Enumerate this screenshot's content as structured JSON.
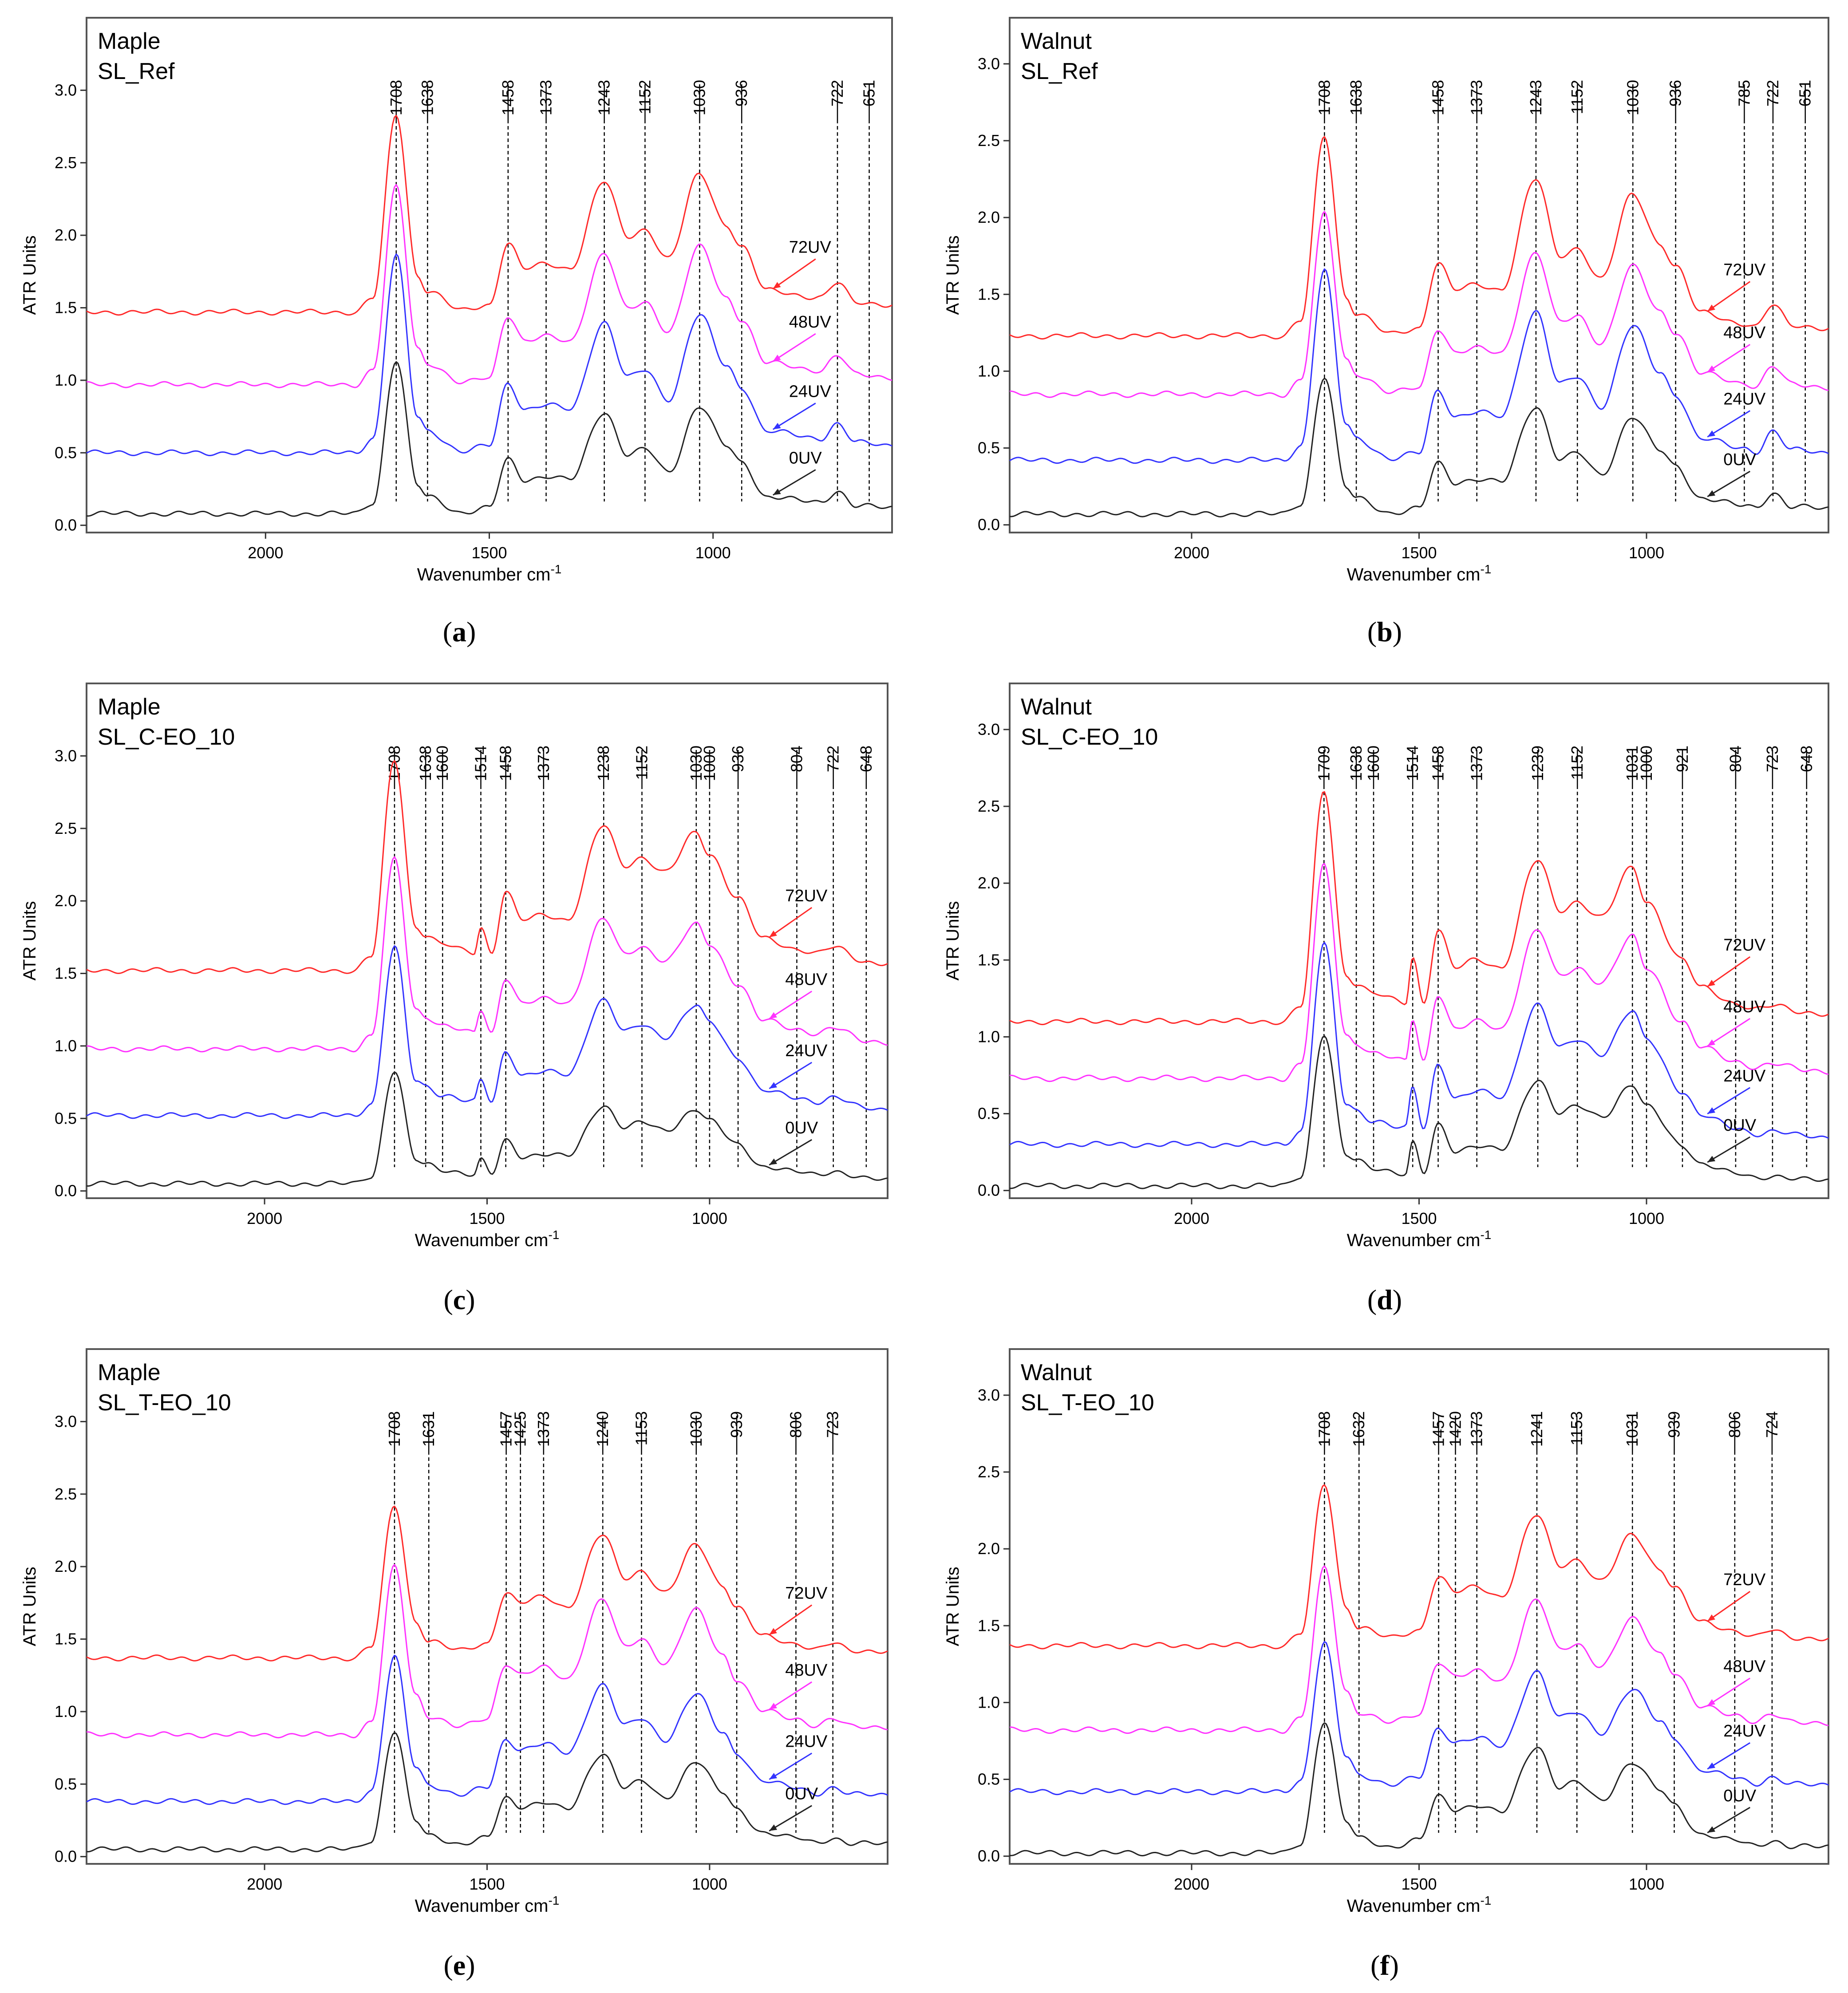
{
  "figure": {
    "captions": [
      "a",
      "b",
      "c",
      "d",
      "e",
      "f"
    ]
  },
  "chart_data": [
    {
      "type": "line",
      "panel": "a",
      "title": [
        "Maple",
        "SL_Ref"
      ],
      "xlabel": "Wavenumber cm",
      "xlabel_sup": "-1",
      "ylabel": "ATR Units",
      "xlim": [
        2400,
        600
      ],
      "ylim": [
        -0.05,
        3.5
      ],
      "xticks": [
        2000,
        1500,
        1000
      ],
      "xtick_labels": [
        "2000",
        "1500",
        "1000"
      ],
      "yticks": [
        0.0,
        0.5,
        1.0,
        1.5,
        2.0,
        2.5,
        3.0
      ],
      "ytick_labels": [
        "0.0",
        "0.5",
        "1.0",
        "1.5",
        "2.0",
        "2.5",
        "3.0"
      ],
      "peaks": [
        1708,
        1638,
        1458,
        1373,
        1243,
        1152,
        1030,
        936,
        722,
        651
      ],
      "peak_labels": [
        "1708",
        "1638",
        "1458",
        "1373",
        "1243",
        "1152",
        "1030",
        "936",
        "722",
        "651"
      ],
      "series": [
        {
          "name": "72UV",
          "color": "#ff2a2a",
          "offset": 1.47,
          "scale": 1.0
        },
        {
          "name": "48UV",
          "color": "#ff33ff",
          "offset": 0.97,
          "scale": 1.0
        },
        {
          "name": "24UV",
          "color": "#3333ff",
          "offset": 0.5,
          "scale": 1.0
        },
        {
          "name": "0UV",
          "color": "#222222",
          "offset": 0.08,
          "scale": 0.78
        }
      ],
      "profile": [
        [
          2400,
          0
        ],
        [
          1800,
          0
        ],
        [
          1760,
          0.1
        ],
        [
          1708,
          1.36
        ],
        [
          1660,
          0.25
        ],
        [
          1638,
          0.15
        ],
        [
          1560,
          0.01
        ],
        [
          1500,
          0.05
        ],
        [
          1458,
          0.48
        ],
        [
          1420,
          0.3
        ],
        [
          1373,
          0.33
        ],
        [
          1320,
          0.3
        ],
        [
          1243,
          0.9
        ],
        [
          1190,
          0.52
        ],
        [
          1152,
          0.57
        ],
        [
          1100,
          0.37
        ],
        [
          1030,
          0.95
        ],
        [
          970,
          0.6
        ],
        [
          936,
          0.45
        ],
        [
          880,
          0.15
        ],
        [
          760,
          0.1
        ],
        [
          722,
          0.2
        ],
        [
          680,
          0.07
        ],
        [
          600,
          0.05
        ]
      ]
    },
    {
      "type": "line",
      "panel": "b",
      "title": [
        "Walnut",
        "SL_Ref"
      ],
      "xlabel": "Wavenumber cm",
      "xlabel_sup": "-1",
      "ylabel": "ATR Units",
      "xlim": [
        2400,
        600
      ],
      "ylim": [
        -0.05,
        3.3
      ],
      "xticks": [
        2000,
        1500,
        1000
      ],
      "xtick_labels": [
        "2000",
        "1500",
        "1000"
      ],
      "yticks": [
        0.0,
        0.5,
        1.0,
        1.5,
        2.0,
        2.5,
        3.0
      ],
      "ytick_labels": [
        "0.0",
        "0.5",
        "1.0",
        "1.5",
        "2.0",
        "2.5",
        "3.0"
      ],
      "peaks": [
        1708,
        1638,
        1458,
        1373,
        1243,
        1152,
        1030,
        936,
        785,
        722,
        651
      ],
      "peak_labels": [
        "1708",
        "1638",
        "1458",
        "1373",
        "1243",
        "1152",
        "1030",
        "936",
        "785",
        "722",
        "651"
      ],
      "series": [
        {
          "name": "72UV",
          "color": "#ff2a2a",
          "offset": 1.23,
          "scale": 1.0
        },
        {
          "name": "48UV",
          "color": "#ff33ff",
          "offset": 0.85,
          "scale": 0.9
        },
        {
          "name": "24UV",
          "color": "#3333ff",
          "offset": 0.42,
          "scale": 0.95
        },
        {
          "name": "0UV",
          "color": "#222222",
          "offset": 0.07,
          "scale": 0.69
        }
      ],
      "profile": [
        [
          2400,
          0
        ],
        [
          1800,
          0
        ],
        [
          1760,
          0.1
        ],
        [
          1708,
          1.3
        ],
        [
          1660,
          0.25
        ],
        [
          1638,
          0.15
        ],
        [
          1560,
          0.01
        ],
        [
          1500,
          0.05
        ],
        [
          1458,
          0.48
        ],
        [
          1420,
          0.3
        ],
        [
          1373,
          0.33
        ],
        [
          1320,
          0.3
        ],
        [
          1243,
          1.02
        ],
        [
          1190,
          0.52
        ],
        [
          1152,
          0.57
        ],
        [
          1100,
          0.37
        ],
        [
          1030,
          0.92
        ],
        [
          970,
          0.6
        ],
        [
          936,
          0.45
        ],
        [
          880,
          0.15
        ],
        [
          785,
          0.08
        ],
        [
          760,
          0.06
        ],
        [
          722,
          0.2
        ],
        [
          680,
          0.07
        ],
        [
          600,
          0.05
        ]
      ]
    },
    {
      "type": "line",
      "panel": "c",
      "title": [
        "Maple",
        "SL_C-EO_10"
      ],
      "xlabel": "Wavenumber cm",
      "xlabel_sup": "-1",
      "ylabel": "ATR Units",
      "xlim": [
        2400,
        600
      ],
      "ylim": [
        -0.05,
        3.5
      ],
      "xticks": [
        2000,
        1500,
        1000
      ],
      "xtick_labels": [
        "2000",
        "1500",
        "1000"
      ],
      "yticks": [
        0.0,
        0.5,
        1.0,
        1.5,
        2.0,
        2.5,
        3.0
      ],
      "ytick_labels": [
        "0.0",
        "0.5",
        "1.0",
        "1.5",
        "2.0",
        "2.5",
        "3.0"
      ],
      "peaks": [
        1708,
        1638,
        1600,
        1514,
        1458,
        1373,
        1238,
        1152,
        1030,
        1000,
        936,
        804,
        722,
        648
      ],
      "peak_labels": [
        "1708",
        "1638",
        "1600",
        "1514",
        "1458",
        "1373",
        "1238",
        "1152",
        "1030",
        "1000",
        "936",
        "804",
        "722",
        "648"
      ],
      "series": [
        {
          "name": "72UV",
          "color": "#ff2a2a",
          "offset": 1.52,
          "scale": 1.0
        },
        {
          "name": "48UV",
          "color": "#ff33ff",
          "offset": 0.98,
          "scale": 0.9
        },
        {
          "name": "24UV",
          "color": "#3333ff",
          "offset": 0.52,
          "scale": 0.8
        },
        {
          "name": "0UV",
          "color": "#222222",
          "offset": 0.05,
          "scale": 0.54
        }
      ],
      "profile": [
        [
          2400,
          0
        ],
        [
          1800,
          0
        ],
        [
          1760,
          0.1
        ],
        [
          1708,
          1.45
        ],
        [
          1660,
          0.3
        ],
        [
          1638,
          0.25
        ],
        [
          1600,
          0.18
        ],
        [
          1530,
          0.12
        ],
        [
          1514,
          0.3
        ],
        [
          1490,
          0.12
        ],
        [
          1458,
          0.55
        ],
        [
          1420,
          0.35
        ],
        [
          1373,
          0.38
        ],
        [
          1320,
          0.35
        ],
        [
          1238,
          1.0
        ],
        [
          1190,
          0.72
        ],
        [
          1152,
          0.78
        ],
        [
          1100,
          0.68
        ],
        [
          1030,
          0.95
        ],
        [
          1000,
          0.8
        ],
        [
          936,
          0.5
        ],
        [
          880,
          0.22
        ],
        [
          804,
          0.15
        ],
        [
          760,
          0.12
        ],
        [
          722,
          0.16
        ],
        [
          648,
          0.06
        ],
        [
          600,
          0.05
        ]
      ]
    },
    {
      "type": "line",
      "panel": "d",
      "title": [
        "Walnut",
        "SL_C-EO_10"
      ],
      "xlabel": "Wavenumber cm",
      "xlabel_sup": "-1",
      "ylabel": "ATR Units",
      "xlim": [
        2400,
        600
      ],
      "ylim": [
        -0.05,
        3.3
      ],
      "xticks": [
        2000,
        1500,
        1000
      ],
      "xtick_labels": [
        "2000",
        "1500",
        "1000"
      ],
      "yticks": [
        0.0,
        0.5,
        1.0,
        1.5,
        2.0,
        2.5,
        3.0
      ],
      "ytick_labels": [
        "0.0",
        "0.5",
        "1.0",
        "1.5",
        "2.0",
        "2.5",
        "3.0"
      ],
      "peaks": [
        1709,
        1638,
        1600,
        1514,
        1458,
        1373,
        1239,
        1152,
        1031,
        1000,
        921,
        804,
        723,
        648
      ],
      "peak_labels": [
        "1709",
        "1638",
        "1600",
        "1514",
        "1458",
        "1373",
        "1239",
        "1152",
        "1031",
        "1000",
        "921",
        "804",
        "723",
        "648"
      ],
      "series": [
        {
          "name": "72UV",
          "color": "#ff2a2a",
          "offset": 1.1,
          "scale": 1.0
        },
        {
          "name": "48UV",
          "color": "#ff33ff",
          "offset": 0.73,
          "scale": 0.92
        },
        {
          "name": "24UV",
          "color": "#3333ff",
          "offset": 0.3,
          "scale": 0.87
        },
        {
          "name": "0UV",
          "color": "#222222",
          "offset": 0.03,
          "scale": 0.66
        }
      ],
      "profile": [
        [
          2400,
          0
        ],
        [
          1800,
          0
        ],
        [
          1760,
          0.1
        ],
        [
          1709,
          1.5
        ],
        [
          1660,
          0.3
        ],
        [
          1638,
          0.25
        ],
        [
          1600,
          0.18
        ],
        [
          1530,
          0.12
        ],
        [
          1514,
          0.42
        ],
        [
          1490,
          0.12
        ],
        [
          1458,
          0.6
        ],
        [
          1420,
          0.35
        ],
        [
          1373,
          0.4
        ],
        [
          1320,
          0.35
        ],
        [
          1239,
          1.05
        ],
        [
          1190,
          0.72
        ],
        [
          1152,
          0.78
        ],
        [
          1100,
          0.68
        ],
        [
          1031,
          1.0
        ],
        [
          1000,
          0.78
        ],
        [
          921,
          0.4
        ],
        [
          880,
          0.22
        ],
        [
          804,
          0.12
        ],
        [
          760,
          0.08
        ],
        [
          723,
          0.1
        ],
        [
          648,
          0.06
        ],
        [
          600,
          0.05
        ]
      ]
    },
    {
      "type": "line",
      "panel": "e",
      "title": [
        "Maple",
        "SL_T-EO_10"
      ],
      "xlabel": "Wavenumber cm",
      "xlabel_sup": "-1",
      "ylabel": "ATR Units",
      "xlim": [
        2400,
        600
      ],
      "ylim": [
        -0.05,
        3.5
      ],
      "xticks": [
        2000,
        1500,
        1000
      ],
      "xtick_labels": [
        "2000",
        "1500",
        "1000"
      ],
      "yticks": [
        0.0,
        0.5,
        1.0,
        1.5,
        2.0,
        2.5,
        3.0
      ],
      "ytick_labels": [
        "0.0",
        "0.5",
        "1.0",
        "1.5",
        "2.0",
        "2.5",
        "3.0"
      ],
      "peaks": [
        1708,
        1631,
        1457,
        1425,
        1373,
        1240,
        1153,
        1030,
        939,
        806,
        723
      ],
      "peak_labels": [
        "1708",
        "1631",
        "1457",
        "1425",
        "1373",
        "1240",
        "1153",
        "1030",
        "939",
        "806",
        "723"
      ],
      "series": [
        {
          "name": "72UV",
          "color": "#ff2a2a",
          "offset": 1.37,
          "scale": 1.0
        },
        {
          "name": "48UV",
          "color": "#ff33ff",
          "offset": 0.84,
          "scale": 1.1
        },
        {
          "name": "24UV",
          "color": "#3333ff",
          "offset": 0.38,
          "scale": 0.95
        },
        {
          "name": "0UV",
          "color": "#222222",
          "offset": 0.05,
          "scale": 0.78
        }
      ],
      "profile": [
        [
          2400,
          0
        ],
        [
          1800,
          0
        ],
        [
          1760,
          0.08
        ],
        [
          1708,
          1.05
        ],
        [
          1660,
          0.25
        ],
        [
          1631,
          0.12
        ],
        [
          1560,
          0.05
        ],
        [
          1500,
          0.1
        ],
        [
          1457,
          0.45
        ],
        [
          1425,
          0.38
        ],
        [
          1373,
          0.42
        ],
        [
          1320,
          0.35
        ],
        [
          1240,
          0.85
        ],
        [
          1190,
          0.55
        ],
        [
          1153,
          0.6
        ],
        [
          1100,
          0.45
        ],
        [
          1030,
          0.78
        ],
        [
          970,
          0.5
        ],
        [
          939,
          0.35
        ],
        [
          880,
          0.15
        ],
        [
          806,
          0.1
        ],
        [
          760,
          0.06
        ],
        [
          723,
          0.1
        ],
        [
          680,
          0.05
        ],
        [
          600,
          0.05
        ]
      ]
    },
    {
      "type": "line",
      "panel": "f",
      "title": [
        "Walnut",
        "SL_T-EO_10"
      ],
      "xlabel": "Wavenumber cm",
      "xlabel_sup": "-1",
      "ylabel": "ATR Units",
      "xlim": [
        2400,
        600
      ],
      "ylim": [
        -0.05,
        3.3
      ],
      "xticks": [
        2000,
        1500,
        1000
      ],
      "xtick_labels": [
        "2000",
        "1500",
        "1000"
      ],
      "yticks": [
        0.0,
        0.5,
        1.0,
        1.5,
        2.0,
        2.5,
        3.0
      ],
      "ytick_labels": [
        "0.0",
        "0.5",
        "1.0",
        "1.5",
        "2.0",
        "2.5",
        "3.0"
      ],
      "peaks": [
        1708,
        1632,
        1457,
        1420,
        1373,
        1241,
        1153,
        1031,
        939,
        806,
        724
      ],
      "peak_labels": [
        "1708",
        "1632",
        "1457",
        "1420",
        "1373",
        "1241",
        "1153",
        "1031",
        "939",
        "806",
        "724"
      ],
      "series": [
        {
          "name": "72UV",
          "color": "#ff2a2a",
          "offset": 1.37,
          "scale": 1.0
        },
        {
          "name": "48UV",
          "color": "#ff33ff",
          "offset": 0.82,
          "scale": 1.0
        },
        {
          "name": "24UV",
          "color": "#3333ff",
          "offset": 0.42,
          "scale": 0.92
        },
        {
          "name": "0UV",
          "color": "#222222",
          "offset": 0.02,
          "scale": 0.82
        }
      ],
      "profile": [
        [
          2400,
          0
        ],
        [
          1800,
          0
        ],
        [
          1760,
          0.08
        ],
        [
          1708,
          1.05
        ],
        [
          1660,
          0.25
        ],
        [
          1632,
          0.12
        ],
        [
          1560,
          0.05
        ],
        [
          1500,
          0.1
        ],
        [
          1457,
          0.45
        ],
        [
          1420,
          0.35
        ],
        [
          1373,
          0.38
        ],
        [
          1320,
          0.32
        ],
        [
          1241,
          0.85
        ],
        [
          1190,
          0.52
        ],
        [
          1153,
          0.56
        ],
        [
          1100,
          0.42
        ],
        [
          1031,
          0.72
        ],
        [
          970,
          0.5
        ],
        [
          939,
          0.38
        ],
        [
          880,
          0.15
        ],
        [
          806,
          0.1
        ],
        [
          760,
          0.06
        ],
        [
          724,
          0.1
        ],
        [
          680,
          0.05
        ],
        [
          600,
          0.05
        ]
      ]
    }
  ]
}
